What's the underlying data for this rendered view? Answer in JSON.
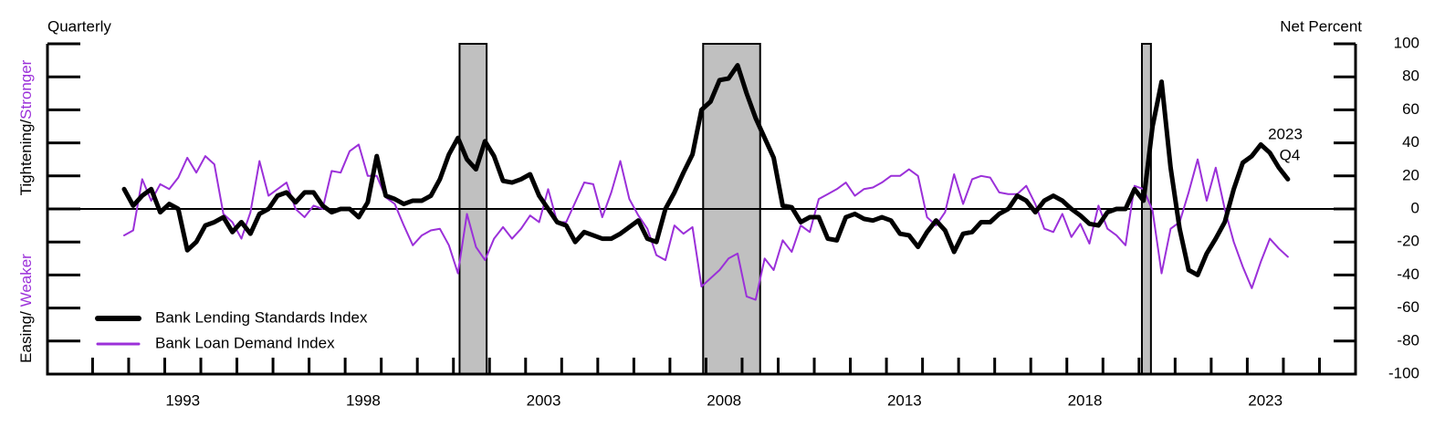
{
  "chart_data": {
    "type": "line",
    "corner_left": "Quarterly",
    "corner_right": "Net Percent",
    "ylabel_upper": [
      "Tightening/",
      "Stronger"
    ],
    "ylabel_lower": [
      "Easing/ ",
      "Weaker"
    ],
    "annotation": [
      "2023",
      "Q4"
    ],
    "x": [
      1991.875,
      1992.125,
      1992.375,
      1992.625,
      1992.875,
      1993.125,
      1993.375,
      1993.625,
      1993.875,
      1994.125,
      1994.375,
      1994.625,
      1994.875,
      1995.125,
      1995.375,
      1995.625,
      1995.875,
      1996.125,
      1996.375,
      1996.625,
      1996.875,
      1997.125,
      1997.375,
      1997.625,
      1997.875,
      1998.125,
      1998.375,
      1998.625,
      1998.875,
      1999.125,
      1999.375,
      1999.625,
      1999.875,
      2000.125,
      2000.375,
      2000.625,
      2000.875,
      2001.125,
      2001.375,
      2001.625,
      2001.875,
      2002.125,
      2002.375,
      2002.625,
      2002.875,
      2003.125,
      2003.375,
      2003.625,
      2003.875,
      2004.125,
      2004.375,
      2004.625,
      2004.875,
      2005.125,
      2005.375,
      2005.625,
      2005.875,
      2006.125,
      2006.375,
      2006.625,
      2006.875,
      2007.125,
      2007.375,
      2007.625,
      2007.875,
      2008.125,
      2008.375,
      2008.625,
      2008.875,
      2009.125,
      2009.375,
      2009.625,
      2009.875,
      2010.125,
      2010.375,
      2010.625,
      2010.875,
      2011.125,
      2011.375,
      2011.625,
      2011.875,
      2012.125,
      2012.375,
      2012.625,
      2012.875,
      2013.125,
      2013.375,
      2013.625,
      2013.875,
      2014.125,
      2014.375,
      2014.625,
      2014.875,
      2015.125,
      2015.375,
      2015.625,
      2015.875,
      2016.125,
      2016.375,
      2016.625,
      2016.875,
      2017.125,
      2017.375,
      2017.625,
      2017.875,
      2018.125,
      2018.375,
      2018.625,
      2018.875,
      2019.125,
      2019.375,
      2019.625,
      2019.875,
      2020.125,
      2020.375,
      2020.625,
      2020.875,
      2021.125,
      2021.375,
      2021.625,
      2021.875,
      2022.125,
      2022.375,
      2022.625,
      2022.875,
      2023.125,
      2023.375,
      2023.625,
      2023.875,
      2024.125
    ],
    "series": [
      {
        "name": "Bank Lending Standards Index",
        "color": "#000000",
        "width": 5,
        "values": [
          12,
          2,
          8,
          12,
          -2,
          3,
          0,
          -25,
          -20,
          -10,
          -8,
          -5,
          -14,
          -8,
          -15,
          -3,
          0,
          8,
          10,
          4,
          10,
          10,
          2,
          -2,
          0,
          0,
          -5,
          4,
          32,
          8,
          6,
          3,
          5,
          5,
          8,
          18,
          33,
          43,
          30,
          24,
          41,
          32,
          17,
          16,
          18,
          21,
          8,
          0,
          -8,
          -10,
          -20,
          -14,
          -16,
          -18,
          -18,
          -15,
          -11,
          -7,
          -18,
          -20,
          0,
          10,
          22,
          33,
          60,
          65,
          78,
          79,
          87,
          70,
          55,
          43,
          31,
          2,
          1,
          -8,
          -5,
          -5,
          -18,
          -19,
          -5,
          -3,
          -6,
          -7,
          -5,
          -7,
          -15,
          -16,
          -23,
          -14,
          -7,
          -13,
          -26,
          -15,
          -14,
          -8,
          -8,
          -3,
          0,
          8,
          5,
          -2,
          5,
          8,
          5,
          0,
          -4,
          -9,
          -10,
          -2,
          0,
          0,
          12,
          5,
          50,
          77,
          25,
          -12,
          -37,
          -40,
          -27,
          -18,
          -8,
          12,
          28,
          32,
          39,
          34,
          25,
          18
        ]
      },
      {
        "name": "Bank Loan Demand Index",
        "color": "#9b30d9",
        "width": 2,
        "values": [
          -16,
          -13,
          18,
          5,
          15,
          12,
          19,
          31,
          22,
          32,
          27,
          -3,
          -8,
          -18,
          -2,
          29,
          8,
          12,
          16,
          0,
          -5,
          2,
          0,
          23,
          22,
          35,
          39,
          20,
          20,
          7,
          3,
          -10,
          -22,
          -16,
          -13,
          -12,
          -22,
          -39,
          -3,
          -23,
          -31,
          -18,
          -11,
          -18,
          -12,
          -4,
          -8,
          12,
          -8,
          -8,
          4,
          16,
          15,
          -5,
          10,
          29,
          6,
          -4,
          -12,
          -28,
          -31,
          -10,
          -15,
          -11,
          -47,
          -42,
          -37,
          -30,
          -27,
          -53,
          -55,
          -30,
          -37,
          -19,
          -26,
          -10,
          -14,
          6,
          9,
          12,
          16,
          8,
          12,
          13,
          16,
          20,
          20,
          24,
          20,
          -5,
          -10,
          -2,
          21,
          3,
          18,
          20,
          19,
          10,
          9,
          9,
          14,
          3,
          -12,
          -14,
          -3,
          -17,
          -9,
          -21,
          2,
          -12,
          -16,
          -22,
          14,
          12,
          -1,
          -39,
          -12,
          -8,
          10,
          30,
          5,
          25,
          0,
          -20,
          -35,
          -48,
          -32,
          -18,
          -24,
          -29
        ]
      }
    ],
    "shaded_regions": [
      [
        2001.17,
        2001.92
      ],
      [
        2007.92,
        2009.5
      ],
      [
        2020.08,
        2020.33
      ]
    ],
    "shade_color": "#c0c0c0",
    "xlim": [
      1989.75,
      2026
    ],
    "xticks": [
      {
        "value": 1993.5,
        "label": "1993"
      },
      {
        "value": 1998.5,
        "label": "1998"
      },
      {
        "value": 2003.5,
        "label": "2003"
      },
      {
        "value": 2008.5,
        "label": "2008"
      },
      {
        "value": 2013.5,
        "label": "2013"
      },
      {
        "value": 2018.5,
        "label": "2018"
      },
      {
        "value": 2023.5,
        "label": "2023"
      }
    ],
    "xminorticks": [
      1991,
      1992,
      1993,
      1994,
      1995,
      1996,
      1997,
      1998,
      1999,
      2000,
      2001,
      2002,
      2003,
      2004,
      2005,
      2006,
      2007,
      2008,
      2009,
      2010,
      2011,
      2012,
      2013,
      2014,
      2015,
      2016,
      2017,
      2018,
      2019,
      2020,
      2021,
      2022,
      2023,
      2024,
      2025
    ],
    "ylim": [
      -100,
      100
    ],
    "yticks": [
      100,
      80,
      60,
      40,
      20,
      0,
      -20,
      -40,
      -60,
      -80,
      -100
    ],
    "legend": "lower left"
  }
}
